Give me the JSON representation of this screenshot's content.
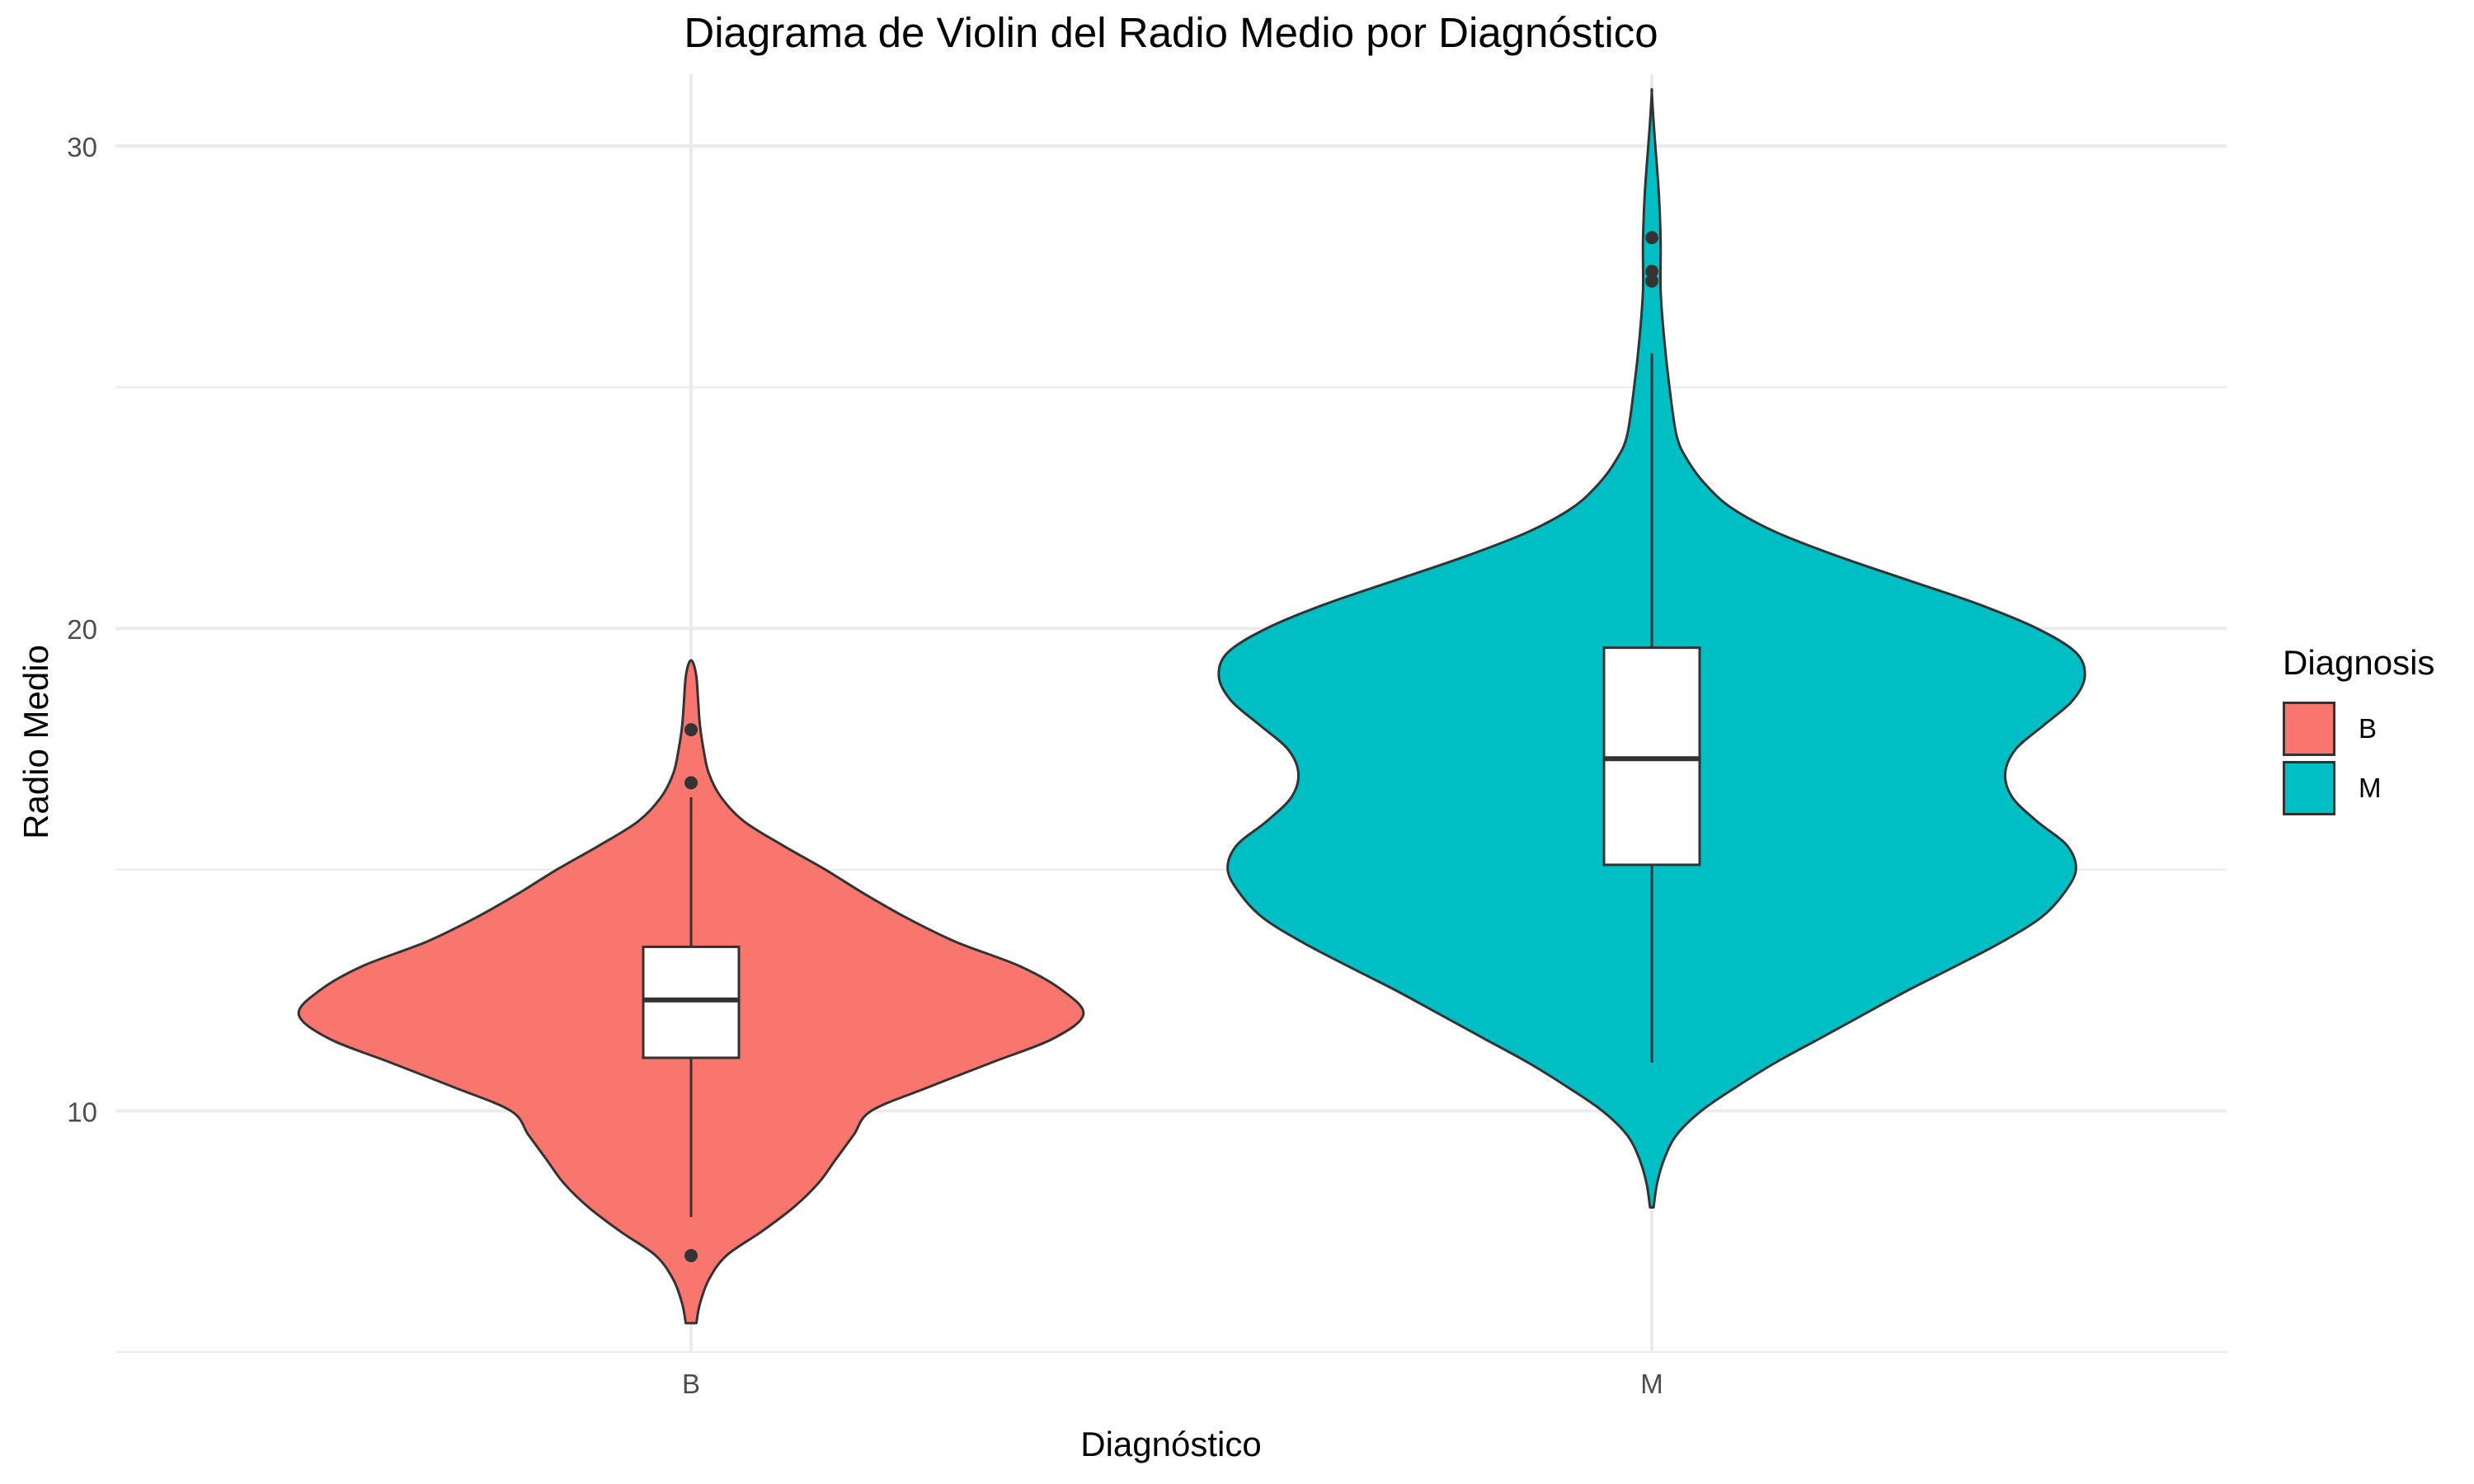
{
  "chart_data": {
    "type": "violin",
    "title": "Diagrama de Violin del Radio Medio por Diagnóstico",
    "xlabel": "Diagnóstico",
    "ylabel": "Radio Medio",
    "categories": [
      "B",
      "M"
    ],
    "ylim": [
      5,
      32
    ],
    "yticks": [
      10,
      20,
      30
    ],
    "grid": true,
    "legend": {
      "title": "Diagnosis",
      "position": "right",
      "entries": [
        "B",
        "M"
      ]
    },
    "colors": {
      "B": "#F8766D",
      "M": "#00BFC4",
      "outline": "#333333",
      "grid": "#EBEBEB"
    },
    "series": [
      {
        "name": "B",
        "violin_min": 5.6,
        "violin_max": 19.3,
        "density": [
          [
            5.6,
            0.03
          ],
          [
            6.0,
            0.05
          ],
          [
            6.5,
            0.1
          ],
          [
            7.0,
            0.2
          ],
          [
            7.5,
            0.4
          ],
          [
            8.0,
            0.58
          ],
          [
            8.5,
            0.72
          ],
          [
            9.0,
            0.82
          ],
          [
            9.5,
            0.92
          ],
          [
            10.0,
            1.02
          ],
          [
            10.5,
            1.35
          ],
          [
            11.0,
            1.7
          ],
          [
            11.5,
            2.05
          ],
          [
            12.0,
            2.22
          ],
          [
            12.5,
            2.1
          ],
          [
            13.0,
            1.86
          ],
          [
            13.5,
            1.5
          ],
          [
            14.0,
            1.22
          ],
          [
            14.5,
            0.98
          ],
          [
            15.0,
            0.76
          ],
          [
            15.5,
            0.52
          ],
          [
            16.0,
            0.3
          ],
          [
            16.5,
            0.17
          ],
          [
            17.0,
            0.1
          ],
          [
            17.5,
            0.07
          ],
          [
            18.0,
            0.05
          ],
          [
            18.5,
            0.04
          ],
          [
            19.0,
            0.03
          ],
          [
            19.3,
            0.01
          ]
        ],
        "box": {
          "whisker_low": 7.8,
          "q1": 11.1,
          "median": 12.3,
          "q3": 13.4,
          "whisker_high": 16.5
        },
        "outliers": [
          17.9,
          16.8,
          7.0
        ]
      },
      {
        "name": "M",
        "violin_min": 8.0,
        "violin_max": 31.1,
        "density": [
          [
            8.0,
            0.01
          ],
          [
            8.5,
            0.03
          ],
          [
            9.0,
            0.07
          ],
          [
            9.5,
            0.14
          ],
          [
            10.0,
            0.28
          ],
          [
            10.5,
            0.48
          ],
          [
            11.0,
            0.7
          ],
          [
            11.5,
            0.95
          ],
          [
            12.0,
            1.2
          ],
          [
            12.5,
            1.45
          ],
          [
            13.0,
            1.72
          ],
          [
            13.5,
            1.98
          ],
          [
            14.0,
            2.2
          ],
          [
            14.5,
            2.33
          ],
          [
            15.0,
            2.4
          ],
          [
            15.5,
            2.35
          ],
          [
            16.0,
            2.18
          ],
          [
            16.5,
            2.04
          ],
          [
            17.0,
            2.0
          ],
          [
            17.5,
            2.06
          ],
          [
            18.0,
            2.22
          ],
          [
            18.5,
            2.38
          ],
          [
            19.0,
            2.45
          ],
          [
            19.5,
            2.4
          ],
          [
            20.0,
            2.18
          ],
          [
            20.5,
            1.85
          ],
          [
            21.0,
            1.45
          ],
          [
            21.5,
            1.05
          ],
          [
            22.0,
            0.7
          ],
          [
            22.5,
            0.45
          ],
          [
            23.0,
            0.3
          ],
          [
            23.5,
            0.2
          ],
          [
            24.0,
            0.14
          ],
          [
            25.0,
            0.1
          ],
          [
            26.0,
            0.07
          ],
          [
            27.0,
            0.05
          ],
          [
            28.0,
            0.05
          ],
          [
            29.0,
            0.04
          ],
          [
            30.0,
            0.02
          ],
          [
            30.5,
            0.01
          ],
          [
            31.1,
            0.0
          ]
        ],
        "box": {
          "whisker_low": 11.0,
          "q1": 15.1,
          "median": 17.3,
          "q3": 19.6,
          "whisker_high": 25.7
        },
        "outliers": [
          28.1,
          27.4,
          27.2
        ]
      }
    ]
  }
}
